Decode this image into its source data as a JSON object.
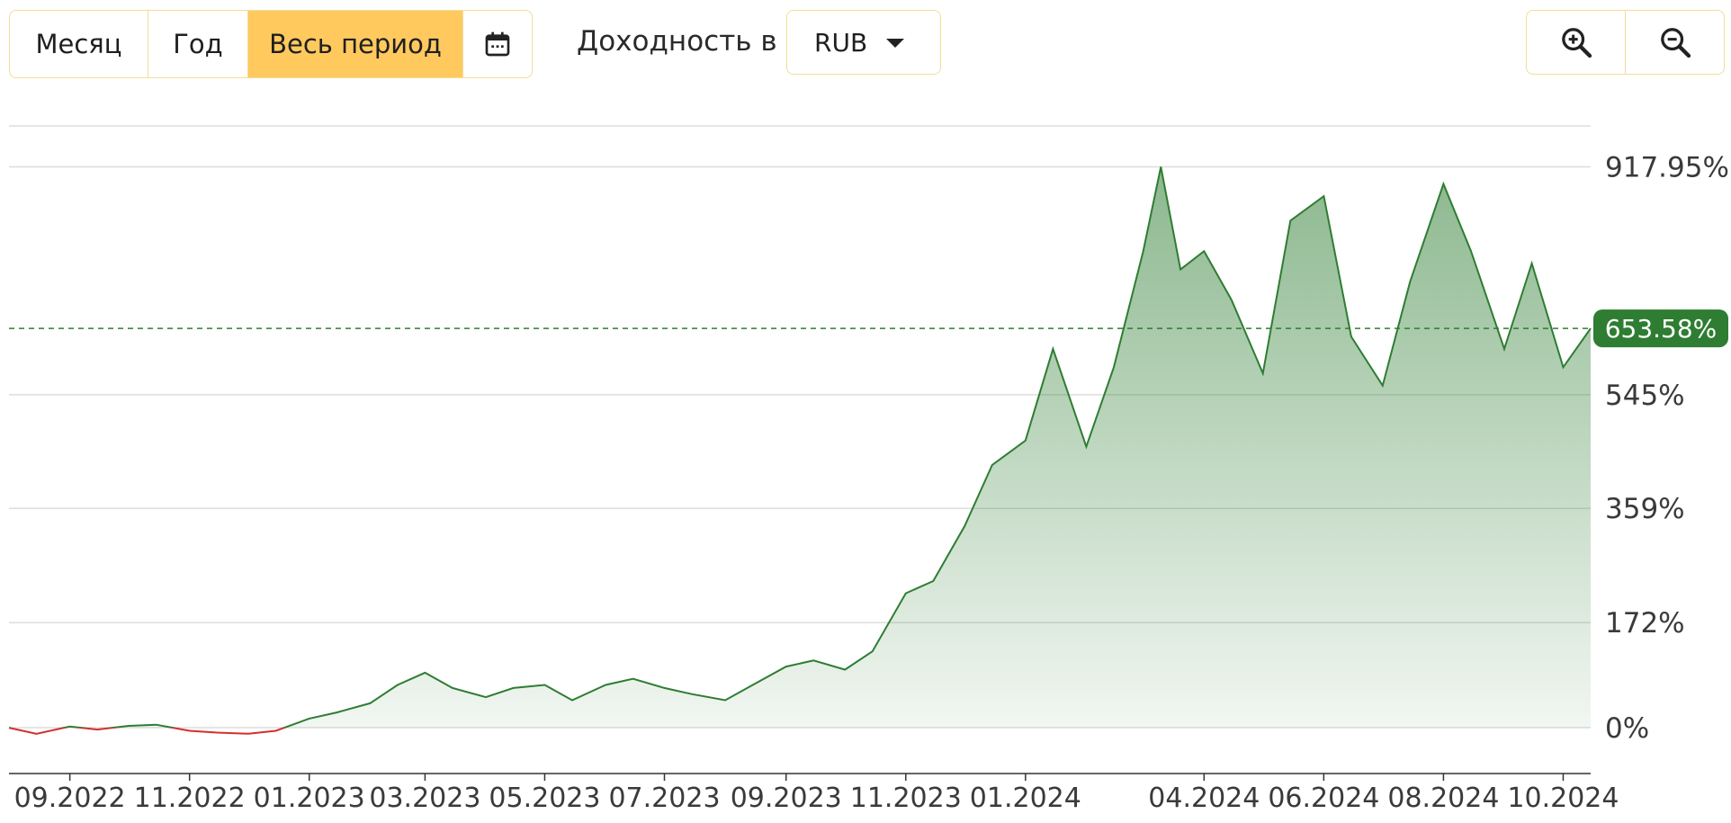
{
  "controls": {
    "periods": [
      {
        "label": "Месяц",
        "active": false
      },
      {
        "label": "Год",
        "active": false
      },
      {
        "label": "Весь период",
        "active": true
      }
    ],
    "calendar_icon": "calendar-icon",
    "yield_label": "Доходность в",
    "currency": "RUB",
    "zoom_in_icon": "zoom-in-icon",
    "zoom_out_icon": "zoom-out-icon"
  },
  "colors": {
    "accent": "#ffc95e",
    "positive_line": "#2e7d32",
    "negative_line": "#d32f2f",
    "badge": "#2e7d32",
    "grid": "#dddddd"
  },
  "chart_data": {
    "type": "area",
    "unit": "%",
    "y_ticks": [
      {
        "value": 0,
        "label": "0%"
      },
      {
        "value": 172,
        "label": "172%"
      },
      {
        "value": 359,
        "label": "359%"
      },
      {
        "value": 545,
        "label": "545%"
      },
      {
        "value": 917.95,
        "label": "917.95%"
      }
    ],
    "current_value": {
      "value": 653.58,
      "label": "653.58%"
    },
    "x_ticks": [
      "09.2022",
      "11.2022",
      "01.2023",
      "03.2023",
      "05.2023",
      "07.2023",
      "09.2023",
      "11.2023",
      "01.2024",
      "04.2024",
      "06.2024",
      "08.2024",
      "10.2024"
    ],
    "x_tick_dates": [
      "2022-09-01",
      "2022-11-01",
      "2023-01-01",
      "2023-03-01",
      "2023-05-01",
      "2023-07-01",
      "2023-09-01",
      "2023-11-01",
      "2024-01-01",
      "2024-04-01",
      "2024-06-01",
      "2024-08-01",
      "2024-10-01"
    ],
    "x_range": [
      "2022-08-01",
      "2024-10-15"
    ],
    "ylim": [
      -75,
      985
    ],
    "grid": true,
    "series": [
      {
        "points": [
          [
            "2022-08-01",
            0
          ],
          [
            "2022-08-15",
            -10
          ],
          [
            "2022-09-01",
            2
          ],
          [
            "2022-09-15",
            -3
          ],
          [
            "2022-10-01",
            3
          ],
          [
            "2022-10-15",
            5
          ],
          [
            "2022-11-01",
            -5
          ],
          [
            "2022-11-15",
            -8
          ],
          [
            "2022-12-01",
            -10
          ],
          [
            "2022-12-15",
            -5
          ],
          [
            "2023-01-01",
            15
          ],
          [
            "2023-01-15",
            25
          ],
          [
            "2023-02-01",
            40
          ],
          [
            "2023-02-15",
            70
          ],
          [
            "2023-03-01",
            90
          ],
          [
            "2023-03-15",
            65
          ],
          [
            "2023-04-01",
            50
          ],
          [
            "2023-04-15",
            65
          ],
          [
            "2023-05-01",
            70
          ],
          [
            "2023-05-15",
            45
          ],
          [
            "2023-06-01",
            70
          ],
          [
            "2023-06-15",
            80
          ],
          [
            "2023-07-01",
            65
          ],
          [
            "2023-07-15",
            55
          ],
          [
            "2023-08-01",
            45
          ],
          [
            "2023-08-15",
            70
          ],
          [
            "2023-09-01",
            100
          ],
          [
            "2023-09-15",
            110
          ],
          [
            "2023-10-01",
            95
          ],
          [
            "2023-10-15",
            125
          ],
          [
            "2023-11-01",
            220
          ],
          [
            "2023-11-15",
            240
          ],
          [
            "2023-12-01",
            330
          ],
          [
            "2023-12-15",
            430
          ],
          [
            "2024-01-01",
            470
          ],
          [
            "2024-01-15",
            620
          ],
          [
            "2024-02-01",
            460
          ],
          [
            "2024-02-15",
            590
          ],
          [
            "2024-03-01",
            780
          ],
          [
            "2024-03-10",
            917.95
          ],
          [
            "2024-03-20",
            750
          ],
          [
            "2024-04-01",
            780
          ],
          [
            "2024-04-15",
            700
          ],
          [
            "2024-05-01",
            580
          ],
          [
            "2024-05-15",
            830
          ],
          [
            "2024-06-01",
            870
          ],
          [
            "2024-06-15",
            640
          ],
          [
            "2024-07-01",
            560
          ],
          [
            "2024-07-15",
            730
          ],
          [
            "2024-08-01",
            890
          ],
          [
            "2024-08-15",
            780
          ],
          [
            "2024-09-01",
            620
          ],
          [
            "2024-09-15",
            760
          ],
          [
            "2024-10-01",
            590
          ],
          [
            "2024-10-15",
            653.58
          ]
        ]
      }
    ]
  }
}
